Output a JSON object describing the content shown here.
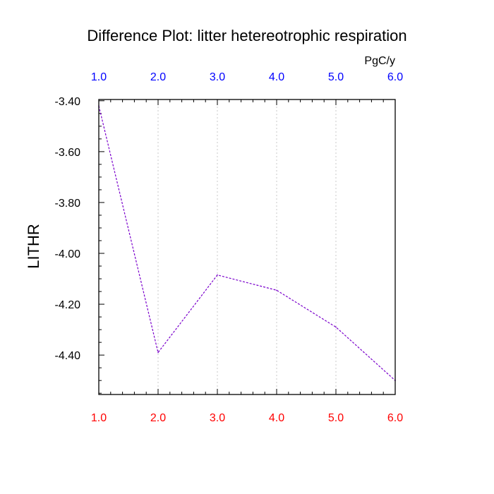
{
  "chart_data": {
    "type": "line",
    "title": "Difference Plot: litter hetereotrophic respiration",
    "units": "PgC/y",
    "ylabel": "LITHR",
    "xlabel": "",
    "x": [
      1,
      2,
      3,
      4,
      5,
      6
    ],
    "xlim": [
      1,
      6
    ],
    "ylim": [
      -4.555,
      -3.395
    ],
    "x_ticks": [
      1,
      2,
      3,
      4,
      5,
      6
    ],
    "x_tick_labels": [
      "1.0",
      "2.0",
      "3.0",
      "4.0",
      "5.0",
      "6.0"
    ],
    "y_ticks": [
      -3.4,
      -3.6,
      -3.8,
      -4.0,
      -4.2,
      -4.4
    ],
    "y_tick_labels": [
      "-3.40",
      "-3.60",
      "-3.80",
      "-4.00",
      "-4.20",
      "-4.40"
    ],
    "grid": "vertical dotted",
    "series": [
      {
        "values": [
          -3.42,
          -4.39,
          -4.085,
          -4.145,
          -4.29,
          -4.5
        ],
        "color": "#7a00cc"
      }
    ],
    "colors": {
      "top_axis_labels": "#0000ff",
      "bottom_axis_labels": "#ff0000",
      "grid": "#c8c8c8",
      "frame": "#000000"
    }
  }
}
